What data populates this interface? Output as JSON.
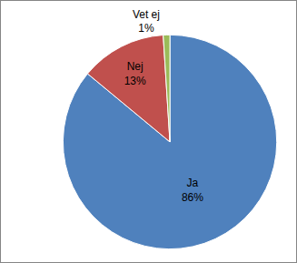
{
  "chart_data": {
    "type": "pie",
    "categories": [
      "Ja",
      "Nej",
      "Vet ej"
    ],
    "values": [
      86,
      13,
      1
    ],
    "value_labels": [
      "86%",
      "13%",
      "1%"
    ],
    "colors": [
      "#4f81bd",
      "#c0504d",
      "#9bbb59"
    ],
    "data_labels": true
  }
}
